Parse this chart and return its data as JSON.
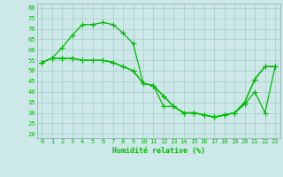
{
  "xlabel": "Humidité relative (%)",
  "background_color": "#cce8e8",
  "grid_color": "#aacccc",
  "line_color": "#00bb00",
  "markersize": 2.5,
  "linewidth": 0.9,
  "xlim": [
    -0.5,
    23.5
  ],
  "ylim": [
    18,
    82
  ],
  "yticks": [
    20,
    25,
    30,
    35,
    40,
    45,
    50,
    55,
    60,
    65,
    70,
    75,
    80
  ],
  "xticks": [
    0,
    1,
    2,
    3,
    4,
    5,
    6,
    7,
    8,
    9,
    10,
    11,
    12,
    13,
    14,
    15,
    16,
    17,
    18,
    19,
    20,
    21,
    22,
    23
  ],
  "series1": [
    54,
    56,
    61,
    67,
    72,
    72,
    73,
    72,
    68,
    63,
    44,
    43,
    33,
    33,
    30,
    30,
    29,
    28,
    29,
    30,
    35,
    46,
    52,
    52
  ],
  "series2": [
    54,
    56,
    56,
    56,
    55,
    55,
    55,
    54,
    52,
    50,
    44,
    43,
    38,
    33,
    30,
    30,
    29,
    28,
    29,
    30,
    34,
    40,
    30,
    52
  ],
  "series3": [
    54,
    56,
    56,
    56,
    55,
    55,
    55,
    54,
    52,
    50,
    44,
    43,
    38,
    33,
    30,
    30,
    29,
    28,
    29,
    30,
    35,
    46,
    52,
    52
  ]
}
